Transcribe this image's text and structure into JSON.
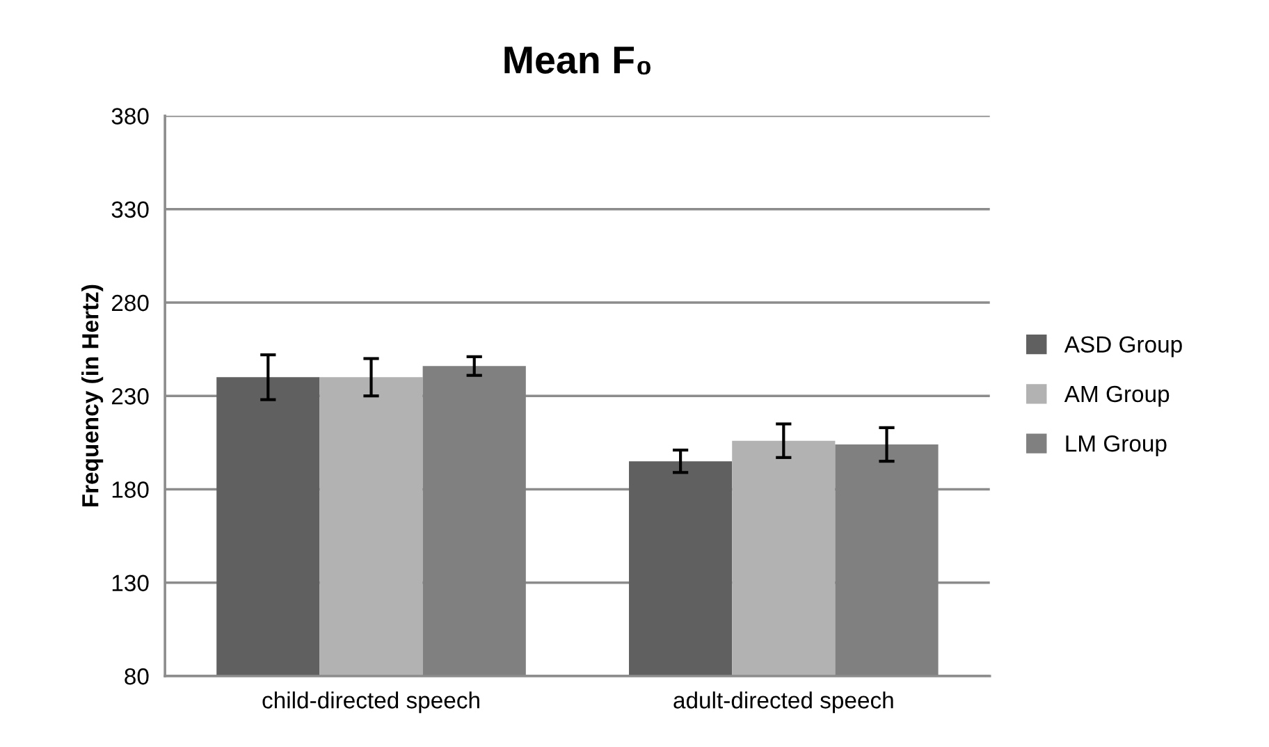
{
  "chart_data": {
    "type": "bar",
    "title": "Mean F₀",
    "ylabel": "Frequency (in Hertz)",
    "categories": [
      "child-directed speech",
      "adult-directed speech"
    ],
    "series": [
      {
        "name": "ASD Group",
        "color": "#606060",
        "values": [
          240,
          195
        ],
        "errors": [
          12,
          6
        ]
      },
      {
        "name": "AM Group",
        "color": "#b2b2b2",
        "values": [
          240,
          206
        ],
        "errors": [
          10,
          9
        ]
      },
      {
        "name": "LM Group",
        "color": "#808080",
        "values": [
          246,
          204
        ],
        "errors": [
          5,
          9
        ]
      }
    ],
    "ylim": [
      80,
      380
    ],
    "yticks": [
      80,
      130,
      180,
      230,
      280,
      330,
      380
    ],
    "grid": "y",
    "legend": "right"
  }
}
